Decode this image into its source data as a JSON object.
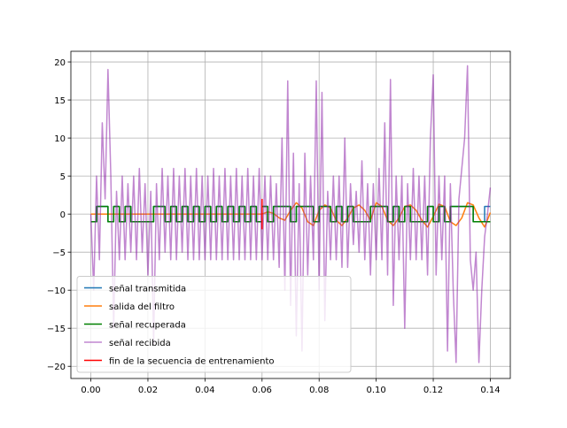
{
  "chart_data": {
    "type": "line",
    "grid": true,
    "legend": "lower left",
    "xlim": [
      -0.007,
      0.147
    ],
    "ylim": [
      -21.6,
      21.4
    ],
    "xticks": [
      {
        "value": 0,
        "label": "0.00"
      },
      {
        "value": 0.02,
        "label": "0.02"
      },
      {
        "value": 0.04,
        "label": "0.04"
      },
      {
        "value": 0.06,
        "label": "0.06"
      },
      {
        "value": 0.08,
        "label": "0.08"
      },
      {
        "value": 0.1,
        "label": "0.10"
      },
      {
        "value": 0.12,
        "label": "0.12"
      },
      {
        "value": 0.14,
        "label": "0.14"
      }
    ],
    "yticks": [
      20,
      15,
      10,
      5,
      0,
      {
        "value": -5,
        "label": "−5"
      },
      {
        "value": -10,
        "label": "−10"
      },
      {
        "value": -15,
        "label": "−15"
      },
      {
        "value": -20,
        "label": "−20"
      }
    ],
    "x": [
      0,
      0.002,
      0.004,
      0.006,
      0.008,
      0.01,
      0.012,
      0.014,
      0.016,
      0.018,
      0.02,
      0.022,
      0.024,
      0.026,
      0.028,
      0.03,
      0.032,
      0.034,
      0.036,
      0.038,
      0.04,
      0.042,
      0.044,
      0.046,
      0.048,
      0.05,
      0.052,
      0.054,
      0.056,
      0.058,
      0.06,
      0.062,
      0.064,
      0.066,
      0.068,
      0.07,
      0.072,
      0.074,
      0.076,
      0.078,
      0.08,
      0.082,
      0.084,
      0.086,
      0.088,
      0.09,
      0.092,
      0.094,
      0.096,
      0.098,
      0.1,
      0.102,
      0.104,
      0.106,
      0.108,
      0.11,
      0.112,
      0.114,
      0.116,
      0.118,
      0.12,
      0.122,
      0.124,
      0.126,
      0.128,
      0.13,
      0.132,
      0.134,
      0.136,
      0.138,
      0.14
    ],
    "series": [
      {
        "name": "señal transmitida",
        "color": "#1f77b4",
        "drawstyle": "steps-post",
        "values": [
          -1,
          1,
          1,
          -1,
          1,
          -1,
          1,
          -1,
          -1,
          -1,
          -1,
          1,
          1,
          -1,
          1,
          -1,
          1,
          -1,
          1,
          -1,
          1,
          -1,
          1,
          -1,
          1,
          -1,
          1,
          -1,
          1,
          -1,
          1,
          -1,
          1,
          1,
          1,
          -1,
          1,
          1,
          1,
          -1,
          1,
          1,
          -1,
          1,
          -1,
          1,
          -1,
          -1,
          -1,
          1,
          1,
          1,
          -1,
          1,
          -1,
          1,
          -1,
          -1,
          -1,
          1,
          -1,
          1,
          -1,
          1,
          1,
          1,
          1,
          -1,
          -1,
          1,
          1
        ]
      },
      {
        "name": "salida del filtro",
        "color": "#ff7f0e",
        "drawstyle": "default",
        "values": [
          0,
          0,
          0,
          0,
          0,
          0,
          0,
          0,
          0,
          0,
          0,
          0,
          0,
          0,
          0,
          0,
          0,
          0,
          0,
          0,
          0,
          0,
          0,
          0,
          0,
          0,
          0,
          0,
          0,
          0,
          0,
          0.3,
          0.1,
          -0.5,
          -0.8,
          0.5,
          1.5,
          0.8,
          -1,
          -1.5,
          0.5,
          1.2,
          0.8,
          -0.8,
          -1.5,
          -0.5,
          0.8,
          1.2,
          0.5,
          -0.8,
          1.5,
          1,
          -0.8,
          -1.5,
          -0.5,
          1,
          1.2,
          0.5,
          -0.8,
          -1.7,
          -0.3,
          1.3,
          1,
          -1,
          -1.5,
          -0.5,
          1.5,
          1.2,
          -0.5,
          -1.7,
          0.2
        ]
      },
      {
        "name": "señal recuperada",
        "color": "#008000",
        "drawstyle": "steps-post",
        "values": [
          -1,
          1,
          1,
          -1,
          1,
          -1,
          1,
          -1,
          -1,
          -1,
          -1,
          1,
          1,
          -1,
          1,
          -1,
          1,
          -1,
          1,
          -1,
          1,
          -1,
          1,
          -1,
          1,
          -1,
          1,
          -1,
          1,
          -1,
          1,
          -1,
          1,
          1,
          1,
          -1,
          1,
          1,
          1,
          -1,
          1,
          1,
          -1,
          1,
          -1,
          1,
          -1,
          -1,
          -1,
          1,
          1,
          1,
          -1,
          1,
          -1,
          1,
          -1,
          -1,
          -1,
          1,
          -1,
          1,
          -1,
          1,
          1,
          1,
          1,
          -1,
          -1,
          -1,
          -1
        ]
      },
      {
        "name": "señal recibida",
        "color": "#8e24aa",
        "opacity": 0.55,
        "drawstyle": "default",
        "x": [
          0,
          0.001,
          0.002,
          0.003,
          0.004,
          0.005,
          0.006,
          0.007,
          0.008,
          0.009,
          0.01,
          0.011,
          0.012,
          0.013,
          0.014,
          0.015,
          0.016,
          0.017,
          0.018,
          0.019,
          0.02,
          0.021,
          0.022,
          0.023,
          0.024,
          0.025,
          0.026,
          0.027,
          0.028,
          0.029,
          0.03,
          0.031,
          0.032,
          0.033,
          0.034,
          0.035,
          0.036,
          0.037,
          0.038,
          0.039,
          0.04,
          0.041,
          0.042,
          0.043,
          0.044,
          0.045,
          0.046,
          0.047,
          0.048,
          0.049,
          0.05,
          0.051,
          0.052,
          0.053,
          0.054,
          0.055,
          0.056,
          0.057,
          0.058,
          0.059,
          0.06,
          0.061,
          0.062,
          0.063,
          0.064,
          0.065,
          0.066,
          0.067,
          0.068,
          0.069,
          0.07,
          0.071,
          0.072,
          0.073,
          0.074,
          0.075,
          0.076,
          0.077,
          0.078,
          0.079,
          0.08,
          0.081,
          0.082,
          0.083,
          0.084,
          0.085,
          0.086,
          0.087,
          0.088,
          0.089,
          0.09,
          0.091,
          0.092,
          0.093,
          0.094,
          0.095,
          0.096,
          0.097,
          0.098,
          0.099,
          0.1,
          0.101,
          0.102,
          0.103,
          0.104,
          0.105,
          0.106,
          0.107,
          0.108,
          0.109,
          0.11,
          0.111,
          0.112,
          0.113,
          0.114,
          0.115,
          0.116,
          0.117,
          0.118,
          0.119,
          0.12,
          0.121,
          0.122,
          0.123,
          0.124,
          0.125,
          0.126,
          0.127,
          0.128,
          0.129,
          0.13,
          0.131,
          0.132,
          0.133,
          0.134,
          0.135,
          0.136,
          0.137,
          0.138,
          0.139,
          0.14
        ],
        "values": [
          0,
          -10,
          5,
          -6,
          12,
          2,
          19,
          5,
          -15,
          3,
          -6,
          5,
          -6,
          4,
          -5,
          5,
          -6,
          6,
          -5,
          4,
          -8,
          3,
          -17,
          4,
          -6,
          6,
          -5,
          5,
          -6,
          6,
          -6,
          5,
          -5,
          6,
          -6,
          5,
          -6,
          6,
          -6,
          5,
          -6,
          5,
          -6,
          6,
          -6,
          5,
          -6,
          6,
          -6,
          5,
          -6,
          6,
          -6,
          5,
          -6,
          6,
          -6,
          5,
          -6,
          6,
          -6,
          5,
          -6,
          5,
          -6,
          4,
          -7,
          10,
          -10,
          17.5,
          -12,
          8,
          -16,
          4,
          -18,
          8,
          -8,
          5,
          -6,
          17.5,
          -10,
          16,
          -14,
          3,
          -6,
          5,
          -6,
          5,
          -7,
          10,
          -7,
          4,
          -4,
          3,
          -5,
          7,
          -6,
          4,
          -8,
          4,
          -6,
          6,
          -6,
          12,
          -8,
          17.7,
          -12,
          5,
          -6,
          5,
          -15,
          4,
          -6,
          6,
          -6,
          5,
          -6,
          5,
          -8,
          10,
          18.3,
          -8,
          5,
          -6,
          5,
          -18,
          4,
          -10,
          -19.5,
          2,
          6,
          10,
          19.5,
          -6,
          -10,
          -5,
          -19.5,
          -10,
          -3,
          0,
          3.5
        ]
      },
      {
        "name": "fin de la secuencia de entrenamiento",
        "color": "#ff0000",
        "drawstyle": "default",
        "x": [
          0.06,
          0.06
        ],
        "values": [
          -2,
          2
        ]
      }
    ]
  }
}
